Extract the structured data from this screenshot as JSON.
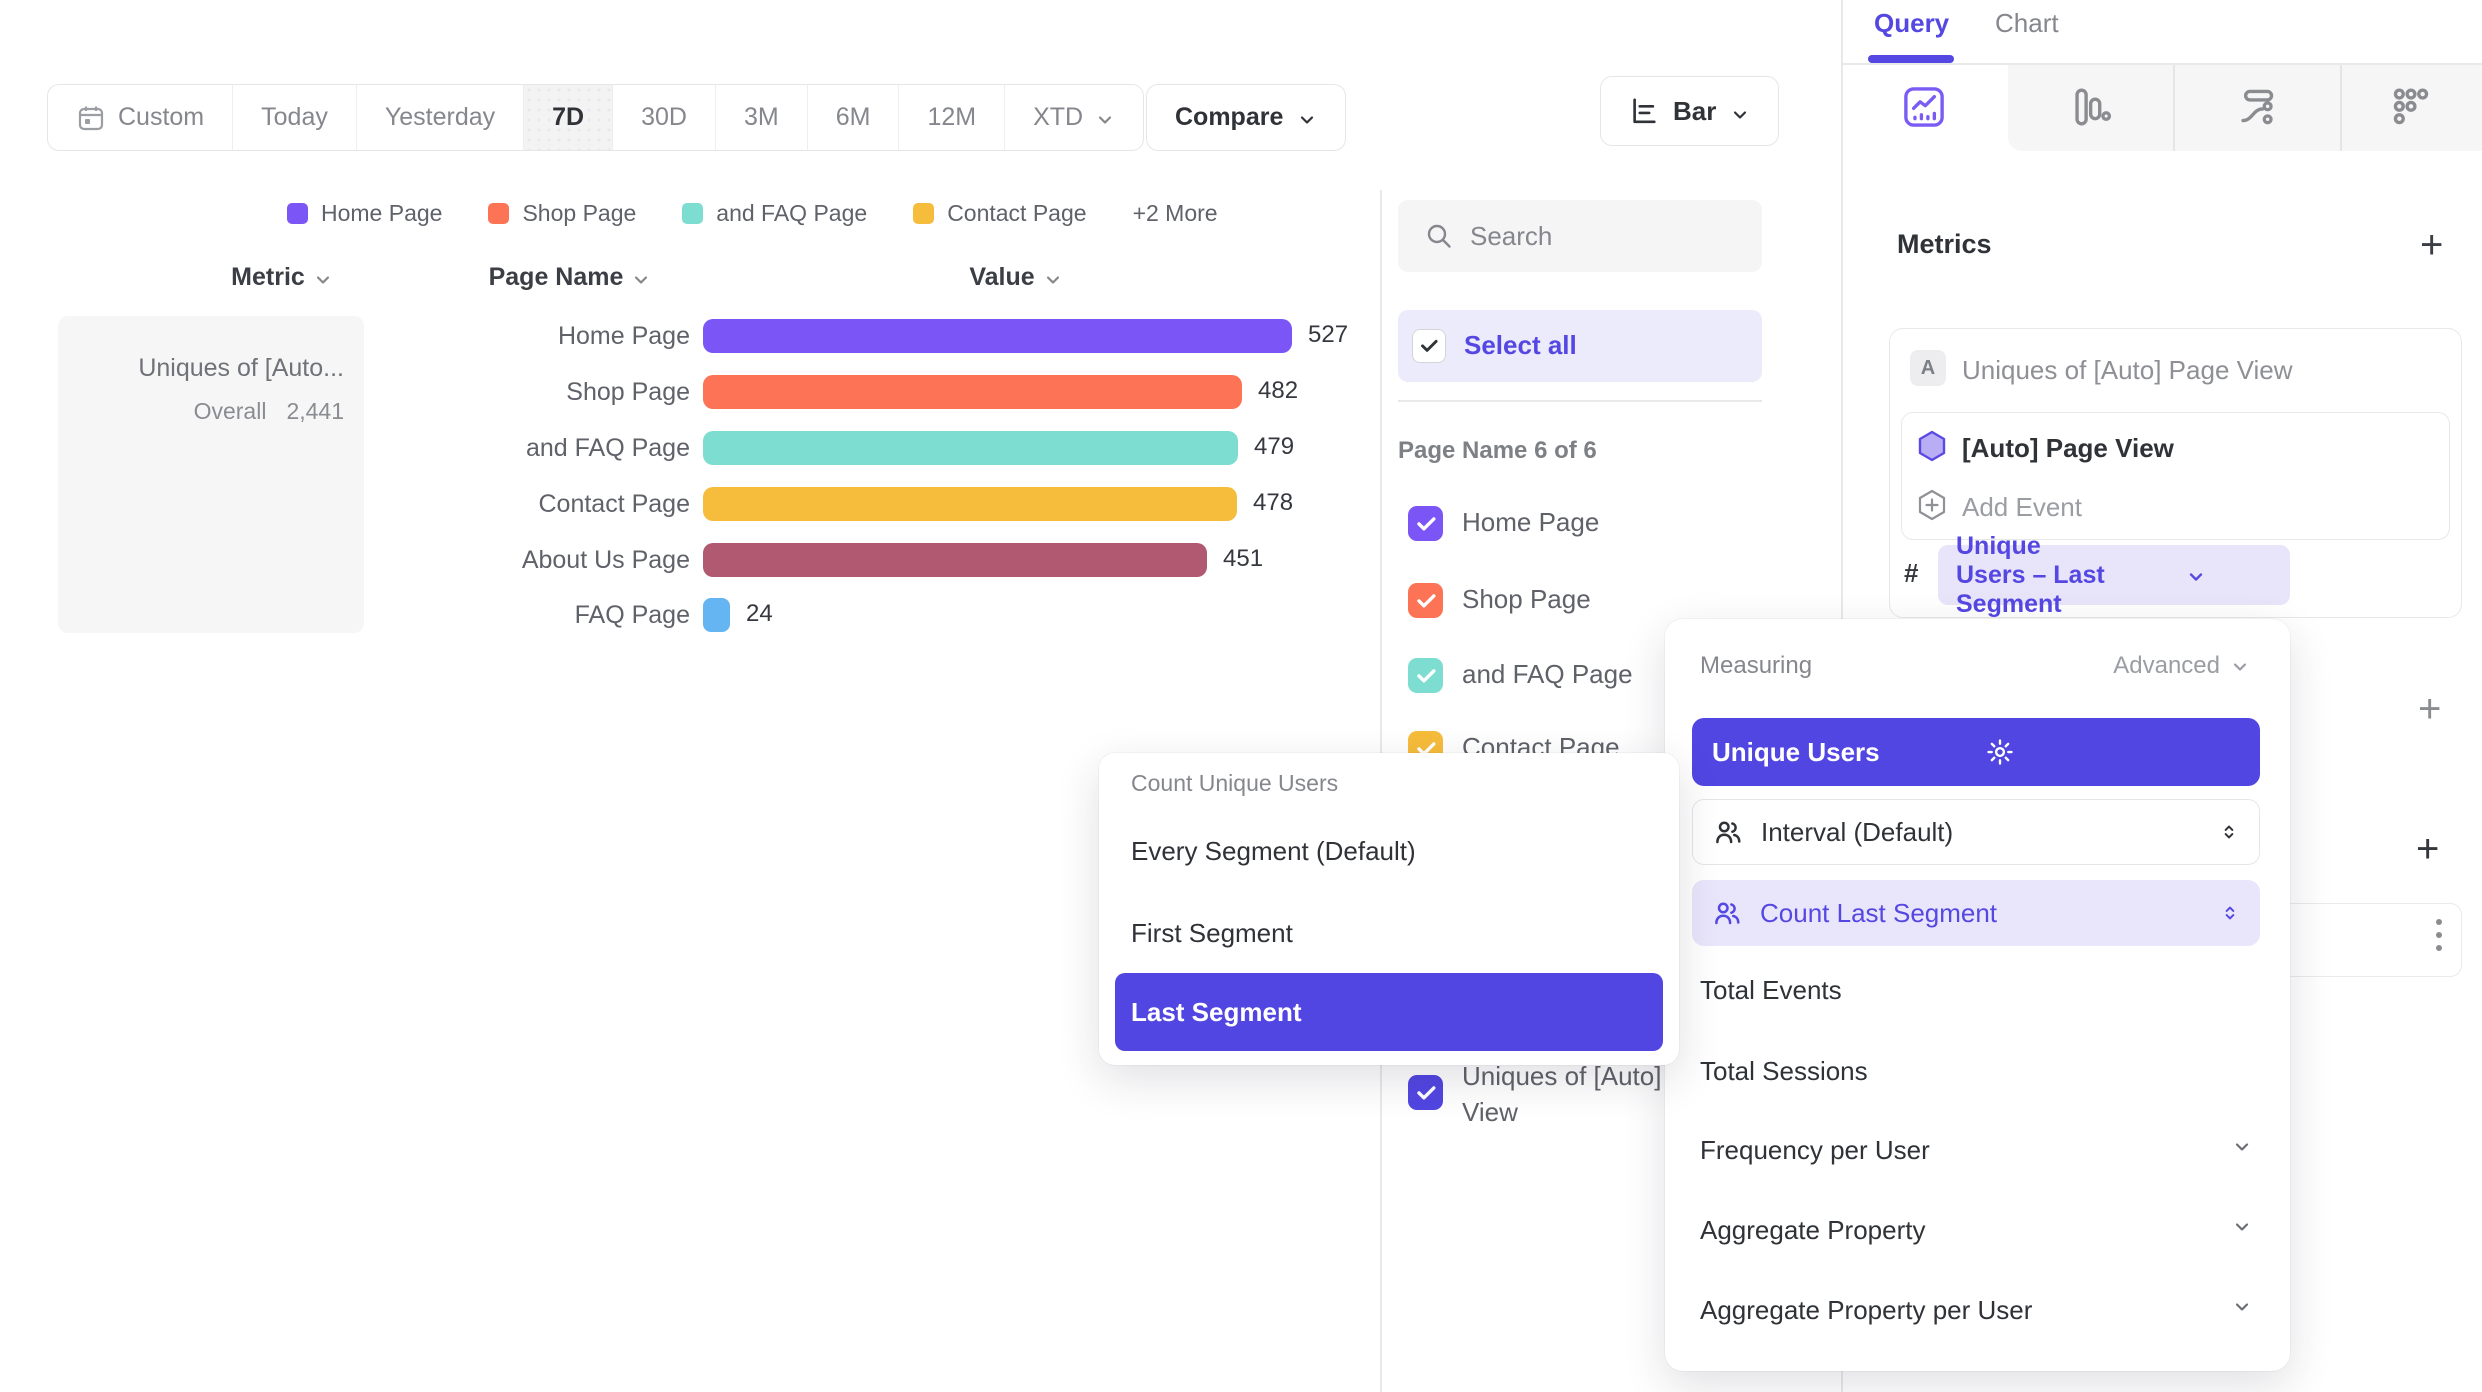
{
  "colors": {
    "accent_indigo": "#5246e2",
    "accent_purple_text": "#5547e2",
    "light_purple_bg": "#ecebfb",
    "pill_bg": "#e8e4fa",
    "bar_purple": "#7b55f6",
    "bar_coral": "#fc7356",
    "bar_teal": "#7eddd1",
    "bar_amber": "#f6bc3b",
    "bar_maroon": "#b15971",
    "bar_blue": "#64b5f1"
  },
  "toolbar": {
    "date_ranges": [
      {
        "label": "Custom"
      },
      {
        "label": "Today"
      },
      {
        "label": "Yesterday"
      },
      {
        "label": "7D",
        "selected": true
      },
      {
        "label": "30D"
      },
      {
        "label": "3M"
      },
      {
        "label": "6M"
      },
      {
        "label": "12M"
      },
      {
        "label": "XTD"
      }
    ],
    "compare_label": "Compare",
    "chart_type_label": "Bar"
  },
  "legend": {
    "items": [
      {
        "label": "Home Page",
        "color": "#7b55f6"
      },
      {
        "label": "Shop Page",
        "color": "#fc7356"
      },
      {
        "label": "and FAQ Page",
        "color": "#7eddd1"
      },
      {
        "label": "Contact Page",
        "color": "#f6bc3b"
      }
    ],
    "more_label": "+2 More"
  },
  "table": {
    "headers": {
      "metric": "Metric",
      "page_name": "Page Name",
      "value": "Value"
    },
    "metric_card": {
      "title": "Uniques of [Auto...",
      "overall_label": "Overall",
      "overall_value": "2,441"
    }
  },
  "chart_data": {
    "type": "bar",
    "orientation": "horizontal",
    "metric": "Uniques of [Auto] Page View",
    "overall_total": 2441,
    "categories": [
      "Home Page",
      "Shop Page",
      "and FAQ Page",
      "Contact Page",
      "About Us Page",
      "FAQ Page"
    ],
    "values": [
      527,
      482,
      479,
      478,
      451,
      24
    ],
    "colors": [
      "#7b55f6",
      "#fc7356",
      "#7eddd1",
      "#f6bc3b",
      "#b15971",
      "#64b5f1"
    ],
    "value_labels_shown": true,
    "axis_shown": false
  },
  "filter_panel": {
    "search_placeholder": "Search",
    "select_all_label": "Select all",
    "group_label": "Page Name 6 of 6",
    "items": [
      {
        "label": "Home Page",
        "color": "#7b55f6",
        "checked": true
      },
      {
        "label": "Shop Page",
        "color": "#fc7356",
        "checked": true
      },
      {
        "label": "and FAQ Page",
        "color": "#7eddd1",
        "checked": true
      },
      {
        "label": "Contact Page",
        "color": "#f6bc3b",
        "checked": true
      }
    ],
    "metric_item": {
      "label": "Uniques of [Auto] Page View",
      "color": "#5246e2",
      "checked": true
    }
  },
  "segment_popup": {
    "header": "Count Unique Users",
    "items": [
      {
        "label": "Every Segment (Default)"
      },
      {
        "label": "First Segment"
      },
      {
        "label": "Last Segment",
        "selected": true
      }
    ]
  },
  "measuring_popup": {
    "header": "Measuring",
    "advanced_label": "Advanced",
    "selected_measure": "Unique Users",
    "steppers": [
      {
        "label": "Interval (Default)",
        "active": false
      },
      {
        "label": "Count Last Segment",
        "active": true
      }
    ],
    "items": [
      {
        "label": "Total Events",
        "expandable": false
      },
      {
        "label": "Total Sessions",
        "expandable": false
      },
      {
        "label": "Frequency per User",
        "expandable": true
      },
      {
        "label": "Aggregate Property",
        "expandable": true
      },
      {
        "label": "Aggregate Property per User",
        "expandable": true
      }
    ]
  },
  "query_panel": {
    "tabs": [
      {
        "label": "Query",
        "active": true
      },
      {
        "label": "Chart",
        "active": false
      }
    ],
    "metrics_title": "Metrics",
    "metric_card": {
      "badge": "A",
      "title": "Uniques of [Auto] Page View",
      "event_label": "[Auto] Page View",
      "add_event_label": "Add Event",
      "hash_symbol": "#",
      "measure_pill_label": "Unique Users – Last Segment"
    }
  }
}
